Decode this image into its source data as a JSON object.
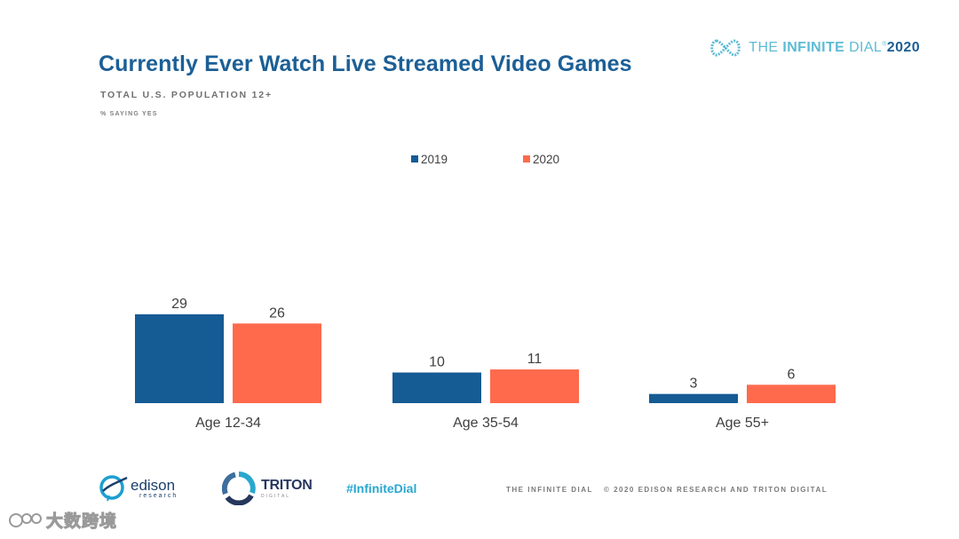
{
  "header": {
    "title": "Currently Ever Watch Live Streamed Video Games",
    "subtitle": "TOTAL U.S. POPULATION 12+",
    "note": "% SAYING YES"
  },
  "brand": {
    "the": "THE ",
    "infinite": "INFINITE",
    "dial": " DIAL",
    "tm": "®",
    "year": "2020",
    "icon": "infinity-icon"
  },
  "colors": {
    "series_2019": "#155b94",
    "series_2020": "#ff6a4d",
    "title": "#1c5f96",
    "accent": "#29a7cf"
  },
  "chart_data": {
    "type": "bar",
    "title": "Currently Ever Watch Live Streamed Video Games",
    "categories": [
      "Age 12-34",
      "Age 35-54",
      "Age 55+"
    ],
    "series": [
      {
        "name": "2019",
        "values": [
          29,
          10,
          3
        ],
        "color": "#155b94"
      },
      {
        "name": "2020",
        "values": [
          26,
          11,
          6
        ],
        "color": "#ff6a4d"
      }
    ],
    "ylim": [
      0,
      29
    ],
    "legend": "top-center",
    "grid": false,
    "data_labels": true
  },
  "footer": {
    "edison_name": "edison",
    "edison_sub": "research",
    "triton_name": "TRITON",
    "triton_sub": "DIGITAL",
    "hashtag": "#InfiniteDial",
    "credit_left": "THE INFINITE DIAL",
    "credit_right": "© 2020 EDISON RESEARCH AND TRITON DIGITAL"
  },
  "watermark": {
    "text": "大数跨境"
  }
}
